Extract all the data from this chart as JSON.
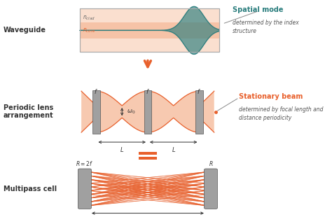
{
  "bg_color": "#ffffff",
  "orange": "#e8602c",
  "orange_light": "#f5b896",
  "teal": "#2a7d7d",
  "gray_lens": "#a0a0a0",
  "dark_text": "#333333",
  "waveguide_label": "Waveguide",
  "periodic_label": "Periodic lens\narrangement",
  "multipass_label": "Multipass cell",
  "spatial_mode_title": "Spatial mode",
  "spatial_mode_sub": "determined by the index\nstructure",
  "stationary_title": "Stationary beam",
  "stationary_sub": "determined by focal length and\ndistance periodicity"
}
